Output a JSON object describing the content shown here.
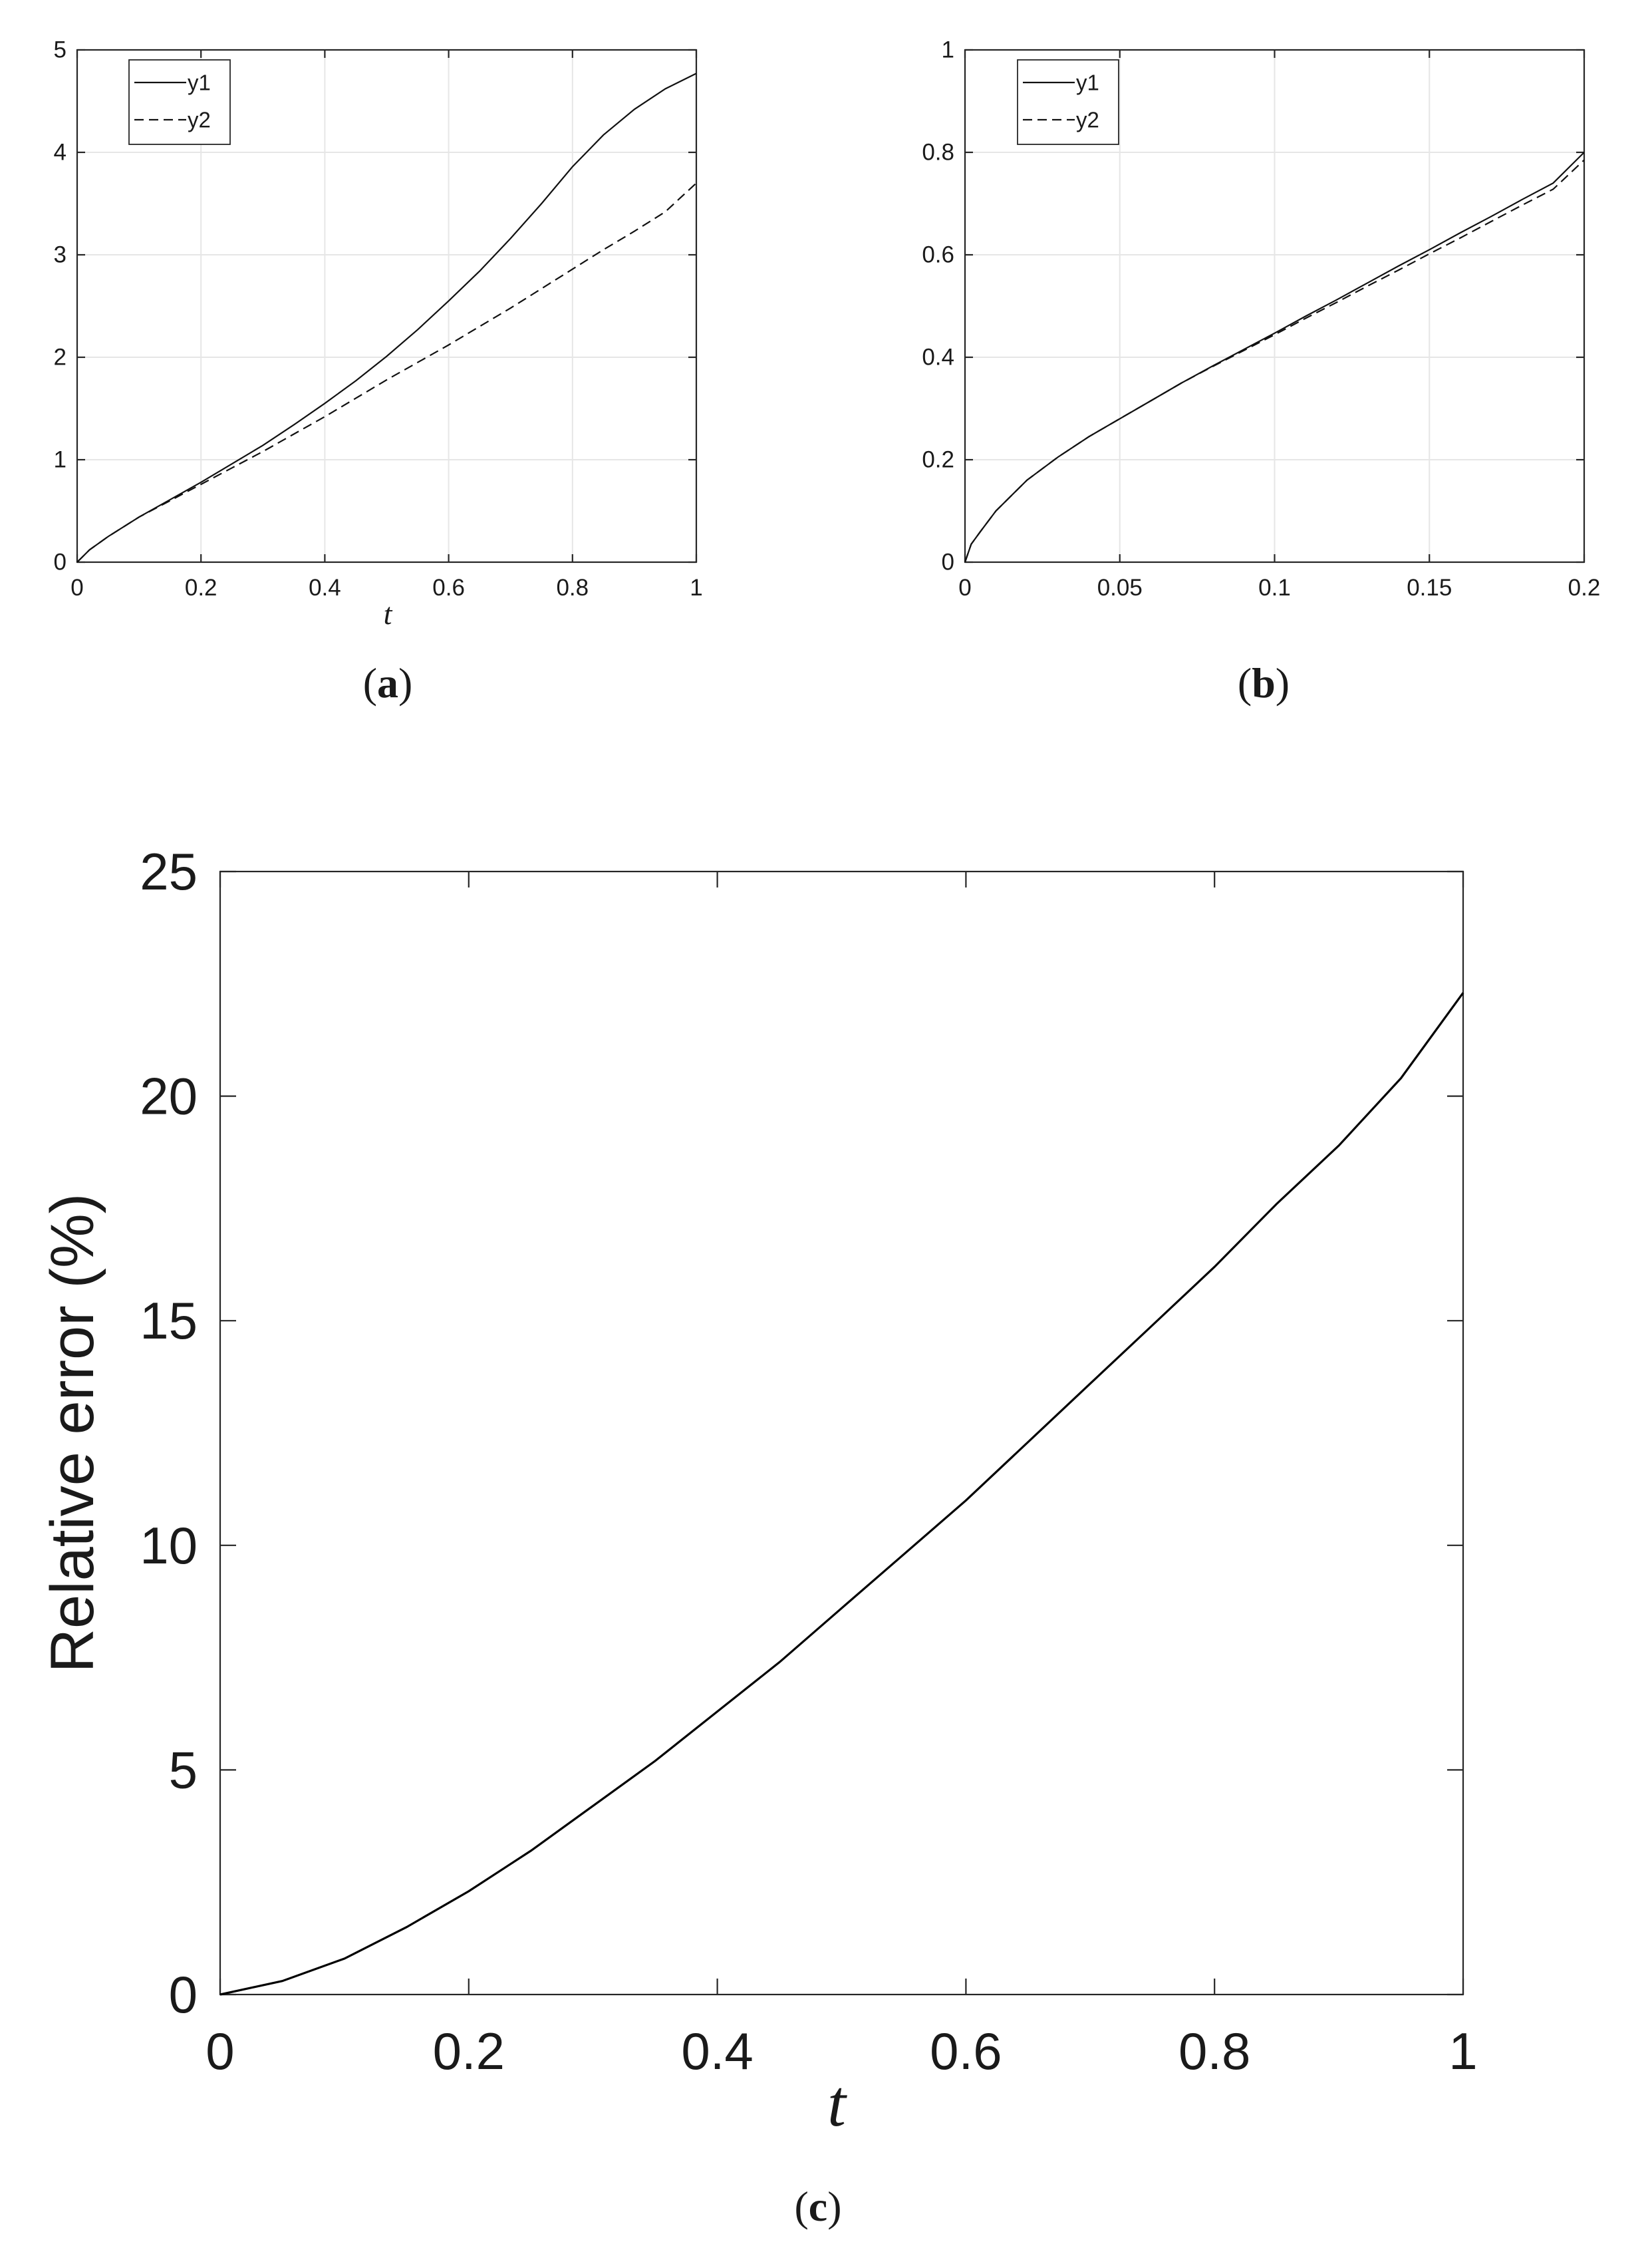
{
  "chart_data": [
    {
      "type": "line",
      "panel_label": "a",
      "xlabel": "t",
      "ylabel": "",
      "xlim": [
        0,
        1
      ],
      "ylim": [
        0,
        5
      ],
      "xticks": [
        0,
        0.2,
        0.4,
        0.6,
        0.8,
        1
      ],
      "xtick_labels": [
        "0",
        "0.2",
        "0.4",
        "0.6",
        "0.8",
        "1"
      ],
      "yticks": [
        0,
        1,
        2,
        3,
        4,
        5
      ],
      "ytick_labels": [
        "0",
        "1",
        "2",
        "3",
        "4",
        "5"
      ],
      "grid": true,
      "legend": "top-left",
      "x": [
        0,
        0.02,
        0.05,
        0.1,
        0.15,
        0.2,
        0.25,
        0.3,
        0.35,
        0.4,
        0.45,
        0.5,
        0.55,
        0.6,
        0.65,
        0.7,
        0.75,
        0.8,
        0.85,
        0.9,
        0.95,
        1.0
      ],
      "series": [
        {
          "name": "y1",
          "style": "solid",
          "values": [
            0,
            0.12,
            0.25,
            0.44,
            0.61,
            0.78,
            0.96,
            1.14,
            1.34,
            1.55,
            1.77,
            2.01,
            2.27,
            2.55,
            2.84,
            3.16,
            3.5,
            3.86,
            4.17,
            4.42,
            4.62,
            4.77
          ]
        },
        {
          "name": "y2",
          "style": "dashed",
          "values": [
            0,
            0.12,
            0.25,
            0.44,
            0.6,
            0.76,
            0.92,
            1.08,
            1.25,
            1.42,
            1.6,
            1.78,
            1.95,
            2.12,
            2.3,
            2.48,
            2.67,
            2.86,
            3.05,
            3.23,
            3.42,
            3.7
          ]
        }
      ]
    },
    {
      "type": "line",
      "panel_label": "b",
      "xlabel": "",
      "ylabel": "",
      "xlim": [
        0,
        0.2
      ],
      "ylim": [
        0,
        1
      ],
      "xticks": [
        0,
        0.05,
        0.1,
        0.15,
        0.2
      ],
      "xtick_labels": [
        "0",
        "0.05",
        "0.1",
        "0.15",
        "0.2"
      ],
      "yticks": [
        0,
        0.2,
        0.4,
        0.6,
        0.8,
        1
      ],
      "ytick_labels": [
        "0",
        "0.2",
        "0.4",
        "0.6",
        "0.8",
        "1"
      ],
      "grid": true,
      "legend": "top-left",
      "x": [
        0,
        0.002,
        0.005,
        0.01,
        0.02,
        0.03,
        0.04,
        0.05,
        0.06,
        0.07,
        0.08,
        0.09,
        0.1,
        0.11,
        0.12,
        0.13,
        0.14,
        0.15,
        0.16,
        0.17,
        0.18,
        0.19,
        0.2
      ],
      "series": [
        {
          "name": "y1",
          "style": "solid",
          "values": [
            0,
            0.035,
            0.06,
            0.1,
            0.16,
            0.205,
            0.245,
            0.28,
            0.315,
            0.35,
            0.383,
            0.415,
            0.447,
            0.48,
            0.512,
            0.545,
            0.578,
            0.61,
            0.643,
            0.675,
            0.708,
            0.74,
            0.8
          ]
        },
        {
          "name": "y2",
          "style": "dashed",
          "values": [
            0,
            0.035,
            0.06,
            0.1,
            0.16,
            0.205,
            0.245,
            0.28,
            0.315,
            0.35,
            0.382,
            0.413,
            0.444,
            0.476,
            0.507,
            0.539,
            0.57,
            0.602,
            0.633,
            0.665,
            0.697,
            0.728,
            0.785
          ]
        }
      ]
    },
    {
      "type": "line",
      "panel_label": "c",
      "xlabel": "t",
      "ylabel": "Relative error (%)",
      "xlim": [
        0,
        1
      ],
      "ylim": [
        0,
        25
      ],
      "xticks": [
        0,
        0.2,
        0.4,
        0.6,
        0.8,
        1
      ],
      "xtick_labels": [
        "0",
        "0.2",
        "0.4",
        "0.6",
        "0.8",
        "1"
      ],
      "yticks": [
        0,
        5,
        10,
        15,
        20,
        25
      ],
      "ytick_labels": [
        "0",
        "5",
        "10",
        "15",
        "20",
        "25"
      ],
      "grid": false,
      "x": [
        0,
        0.05,
        0.1,
        0.15,
        0.2,
        0.25,
        0.3,
        0.35,
        0.4,
        0.45,
        0.5,
        0.55,
        0.6,
        0.65,
        0.7,
        0.75,
        0.8,
        0.85,
        0.9,
        0.95,
        1.0
      ],
      "series": [
        {
          "name": "",
          "style": "solid",
          "values": [
            0,
            0.3,
            0.8,
            1.5,
            2.3,
            3.2,
            4.2,
            5.2,
            6.3,
            7.4,
            8.6,
            9.8,
            11.0,
            12.3,
            13.6,
            14.9,
            16.2,
            17.6,
            18.9,
            20.4,
            22.3
          ]
        }
      ]
    }
  ]
}
